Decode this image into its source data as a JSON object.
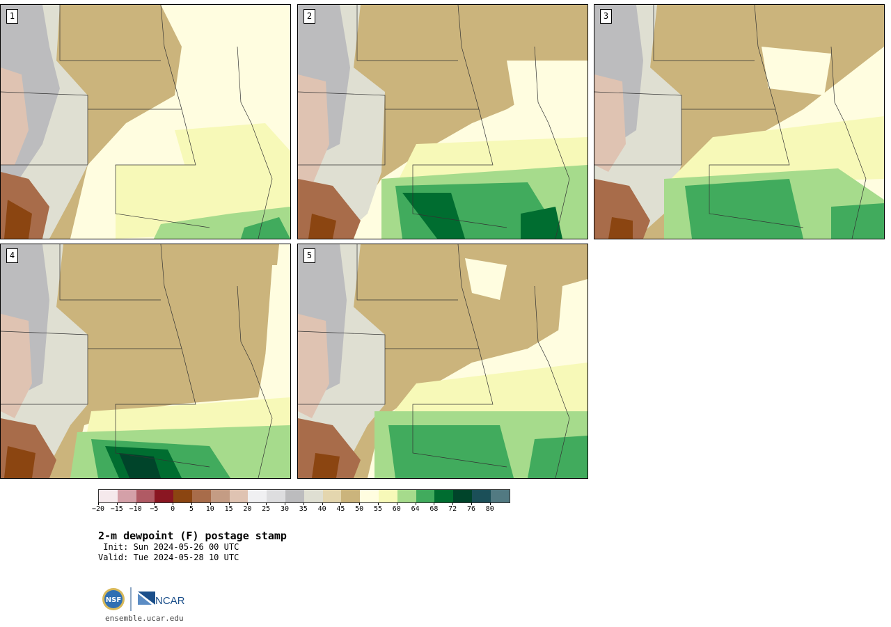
{
  "panels": [
    {
      "label": "1"
    },
    {
      "label": "2"
    },
    {
      "label": "3"
    },
    {
      "label": "4"
    },
    {
      "label": "5"
    }
  ],
  "colorbar": {
    "colors": [
      "#f5e9ec",
      "#d4a0a8",
      "#b05a64",
      "#8a1622",
      "#8b4511",
      "#a86c4a",
      "#c49c84",
      "#dfc3b2",
      "#f0f0f2",
      "#dddddf",
      "#bcbcbe",
      "#dfdfd2",
      "#e4d6ae",
      "#cbb47c",
      "#fffde0",
      "#f7f9b8",
      "#a6db8c",
      "#41ab5d",
      "#006d30",
      "#00442a",
      "#1b4f58",
      "#527a82"
    ],
    "ticks": [
      "−20",
      "−15",
      "−10",
      "−5",
      "0",
      "5",
      "10",
      "15",
      "20",
      "25",
      "30",
      "35",
      "40",
      "45",
      "50",
      "55",
      "60",
      "64",
      "68",
      "72",
      "76",
      "80"
    ]
  },
  "title": "2-m dewpoint (F) postage stamp",
  "init": " Init: Sun 2024-05-26 00 UTC",
  "valid": "Valid: Tue 2024-05-28 10 UTC",
  "logos": {
    "nsf": "NSF",
    "ncar": "NCAR"
  },
  "footer_url": "ensemble.ucar.edu"
}
